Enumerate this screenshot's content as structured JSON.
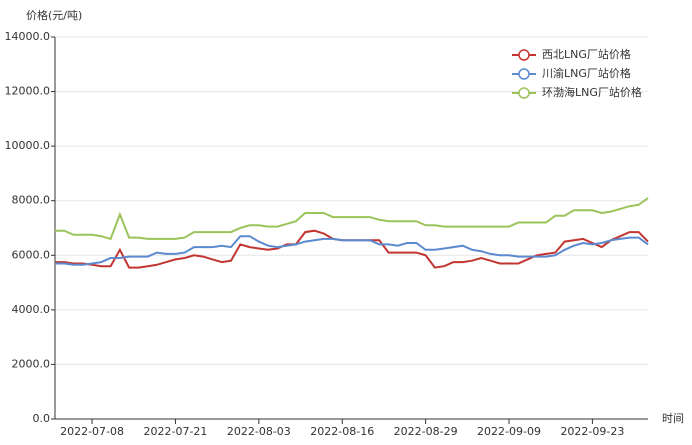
{
  "chart_data": {
    "type": "line",
    "y_label": "价格(元/吨)",
    "x_label": "时间",
    "categories": [
      null,
      null,
      null,
      null,
      "2022-07-08",
      null,
      null,
      null,
      null,
      null,
      null,
      null,
      null,
      "2022-07-21",
      null,
      null,
      null,
      null,
      null,
      null,
      null,
      null,
      "2022-08-03",
      null,
      null,
      null,
      null,
      null,
      null,
      null,
      null,
      "2022-08-16",
      null,
      null,
      null,
      null,
      null,
      null,
      null,
      null,
      "2022-08-29",
      null,
      null,
      null,
      null,
      null,
      null,
      null,
      null,
      "2022-09-09",
      null,
      null,
      null,
      null,
      null,
      null,
      null,
      null,
      "2022-09-23",
      null,
      null,
      null,
      null,
      null,
      null
    ],
    "series": [
      {
        "name": "西北LNG厂站价格",
        "color": "#c23531",
        "values": [
          5750,
          5750,
          5700,
          5700,
          5650,
          5600,
          5600,
          6200,
          5550,
          5550,
          5600,
          5650,
          5750,
          5850,
          5900,
          6000,
          5950,
          5850,
          5750,
          5800,
          6400,
          6300,
          6250,
          6200,
          6250,
          6400,
          6400,
          6850,
          6900,
          6800,
          6600,
          6550,
          6550,
          6550,
          6550,
          6550,
          6100,
          6100,
          6100,
          6100,
          6000,
          5550,
          5600,
          5750,
          5750,
          5800,
          5900,
          5800,
          5700,
          5700,
          5700,
          5850,
          6000,
          6050,
          6100,
          6500,
          6550,
          6600,
          6450,
          6300,
          6550,
          6700,
          6850,
          6850,
          6500
        ]
      },
      {
        "name": "川渝LNG厂站价格",
        "color": "#5b8ad0",
        "values": [
          5700,
          5700,
          5650,
          5650,
          5700,
          5750,
          5900,
          5900,
          5950,
          5950,
          5950,
          6100,
          6050,
          6050,
          6100,
          6300,
          6300,
          6300,
          6350,
          6300,
          6700,
          6700,
          6500,
          6350,
          6300,
          6350,
          6400,
          6500,
          6550,
          6600,
          6600,
          6550,
          6550,
          6550,
          6550,
          6400,
          6400,
          6350,
          6450,
          6450,
          6200,
          6200,
          6250,
          6300,
          6350,
          6200,
          6150,
          6050,
          6000,
          6000,
          5950,
          5950,
          5950,
          5950,
          6000,
          6200,
          6350,
          6450,
          6400,
          6450,
          6550,
          6600,
          6650,
          6650,
          6400
        ]
      },
      {
        "name": "环渤海LNG厂站价格",
        "color": "#9bc35a",
        "values": [
          6900,
          6900,
          6750,
          6750,
          6750,
          6700,
          6600,
          7500,
          6650,
          6650,
          6600,
          6600,
          6600,
          6600,
          6650,
          6850,
          6850,
          6850,
          6850,
          6850,
          7000,
          7100,
          7100,
          7050,
          7050,
          7150,
          7250,
          7550,
          7550,
          7550,
          7400,
          7400,
          7400,
          7400,
          7400,
          7300,
          7250,
          7250,
          7250,
          7250,
          7100,
          7100,
          7050,
          7050,
          7050,
          7050,
          7050,
          7050,
          7050,
          7050,
          7200,
          7200,
          7200,
          7200,
          7450,
          7450,
          7650,
          7650,
          7650,
          7550,
          7600,
          7700,
          7800,
          7850,
          8100
        ]
      }
    ],
    "ylim": [
      0,
      14000
    ],
    "yticks": [
      {
        "value": 0,
        "label": "0.0"
      },
      {
        "value": 2000,
        "label": "2000.0"
      },
      {
        "value": 4000,
        "label": "4000.0"
      },
      {
        "value": 6000,
        "label": "6000.0"
      },
      {
        "value": 8000,
        "label": "8000.0"
      },
      {
        "value": 10000,
        "label": "10000.0"
      },
      {
        "value": 12000,
        "label": "12000.0"
      },
      {
        "value": 14000,
        "label": "14000.0"
      }
    ],
    "grid": true,
    "legend": "top-right"
  }
}
